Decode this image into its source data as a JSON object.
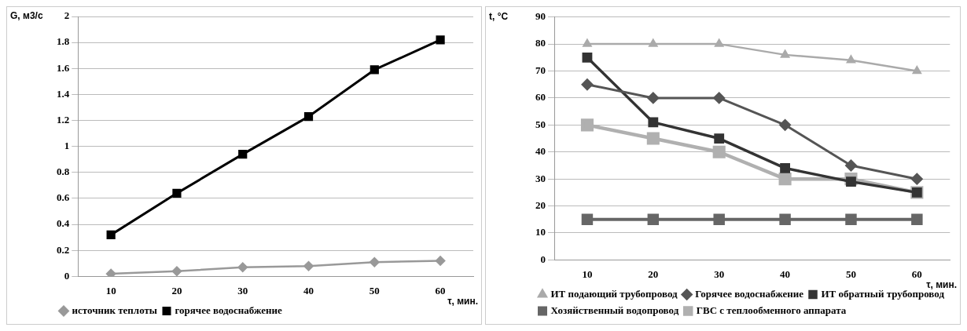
{
  "chart_data": [
    {
      "type": "line",
      "xlabel": "τ, мин.",
      "ylabel": "G, м3/с",
      "categories": [
        "10",
        "20",
        "30",
        "40",
        "50",
        "60"
      ],
      "ylim": [
        0,
        2
      ],
      "yticks": [
        0,
        0.2,
        0.4,
        0.6,
        0.8,
        1,
        1.2,
        1.4,
        1.6,
        1.8,
        2
      ],
      "grid": "y",
      "legend": "bottom",
      "series": [
        {
          "name": "источник теплоты",
          "color": "#999999",
          "marker": "diamond",
          "values": [
            0.02,
            0.04,
            0.07,
            0.08,
            0.11,
            0.12
          ]
        },
        {
          "name": "горячее водоснабжение",
          "color": "#000000",
          "marker": "square",
          "values": [
            0.32,
            0.64,
            0.94,
            1.23,
            1.59,
            1.82
          ]
        }
      ]
    },
    {
      "type": "line",
      "xlabel": "τ, мин.",
      "ylabel": "t, °C",
      "categories": [
        "10",
        "20",
        "30",
        "40",
        "50",
        "60"
      ],
      "ylim": [
        0,
        90
      ],
      "yticks": [
        0,
        10,
        20,
        30,
        40,
        50,
        60,
        70,
        80,
        90
      ],
      "grid": "y",
      "legend": "bottom",
      "series": [
        {
          "name": "ИТ подающий трубопровод",
          "color": "#aaaaaa",
          "marker": "triangle",
          "values": [
            80,
            80,
            80,
            76,
            74,
            70
          ]
        },
        {
          "name": "Горячее водоснабжение",
          "color": "#555555",
          "marker": "diamond",
          "values": [
            65,
            60,
            60,
            50,
            35,
            30
          ]
        },
        {
          "name": "ИТ обратный трубопровод",
          "color": "#333333",
          "marker": "square",
          "values": [
            75,
            51,
            45,
            34,
            29,
            25
          ]
        },
        {
          "name": "Хозяйственный водопровод",
          "color": "#666666",
          "marker": "square",
          "values": [
            15,
            15,
            15,
            15,
            15,
            15
          ]
        },
        {
          "name": "ГВС с теплообменного аппарата",
          "color": "#b0b0b0",
          "marker": "square",
          "values": [
            50,
            45,
            40,
            30,
            30,
            25
          ]
        }
      ]
    }
  ]
}
